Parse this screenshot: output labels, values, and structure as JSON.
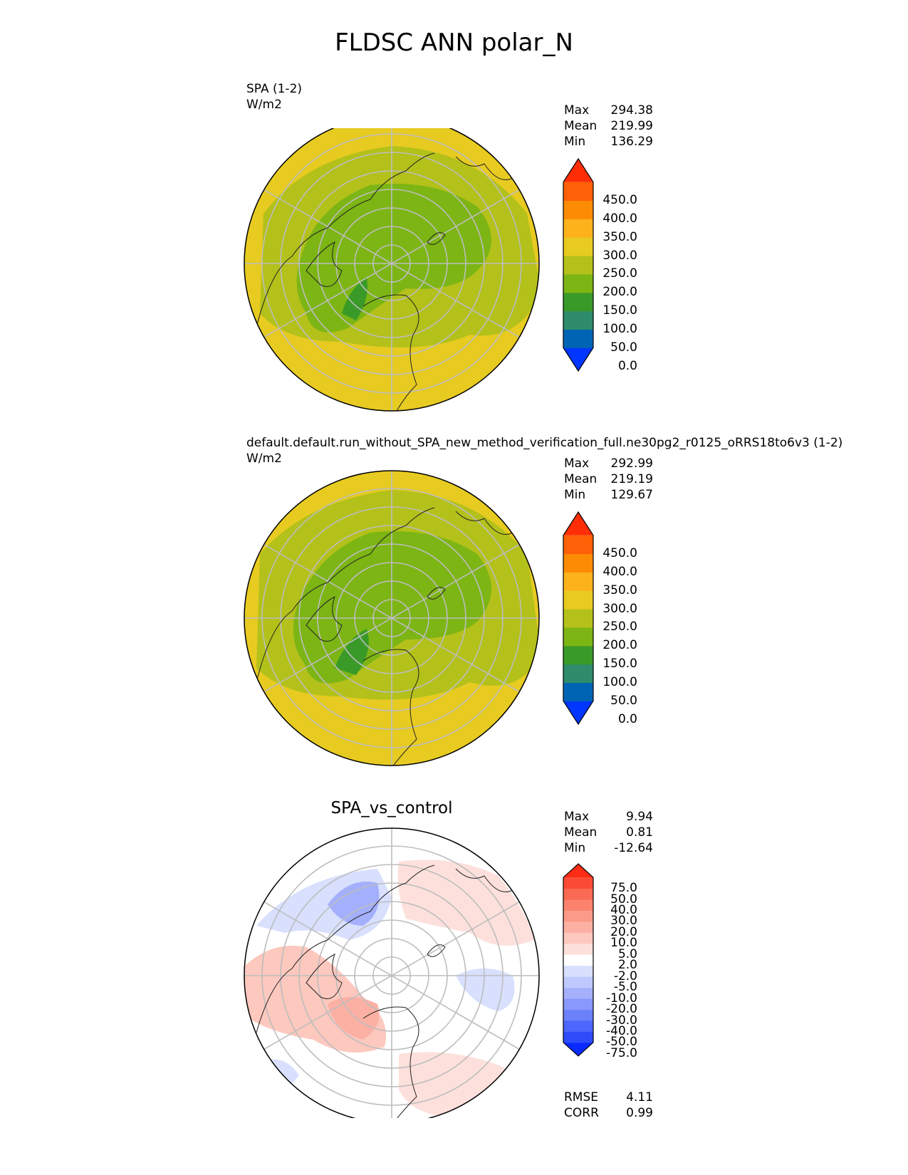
{
  "figure": {
    "title": "FLDSC ANN polar_N"
  },
  "panels": [
    {
      "name": "SPA (1-2)",
      "units": "W/m2",
      "stats": {
        "max_label": "Max",
        "max": "294.38",
        "mean_label": "Mean",
        "mean": "219.99",
        "min_label": "Min",
        "min": "136.29"
      },
      "colorbar": {
        "ticks": [
          "450.0",
          "400.0",
          "350.0",
          "300.0",
          "250.0",
          "200.0",
          "150.0",
          "100.0",
          "50.0",
          "0.0"
        ],
        "colors": [
          "#0036ff",
          "#0064b4",
          "#2e8c6c",
          "#3a9a28",
          "#7cb514",
          "#b3c11a",
          "#e7cb21",
          "#fcb21b",
          "#fd8b04",
          "#fd6006",
          "#ff2e07"
        ]
      }
    },
    {
      "name": "default.default.run_without_SPA_new_method_verification_full.ne30pg2_r0125_oRRS18to6v3 (1-2)",
      "units": "W/m2",
      "stats": {
        "max_label": "Max",
        "max": "292.99",
        "mean_label": "Mean",
        "mean": "219.19",
        "min_label": "Min",
        "min": "129.67"
      },
      "colorbar": {
        "ticks": [
          "450.0",
          "400.0",
          "350.0",
          "300.0",
          "250.0",
          "200.0",
          "150.0",
          "100.0",
          "50.0",
          "0.0"
        ],
        "colors": [
          "#0036ff",
          "#0064b4",
          "#2e8c6c",
          "#3a9a28",
          "#7cb514",
          "#b3c11a",
          "#e7cb21",
          "#fcb21b",
          "#fd8b04",
          "#fd6006",
          "#ff2e07"
        ]
      }
    },
    {
      "name": "SPA_vs_control",
      "stats": {
        "max_label": "Max",
        "max": "9.94",
        "mean_label": "Mean",
        "mean": "0.81",
        "min_label": "Min",
        "min": "-12.64"
      },
      "colorbar": {
        "ticks": [
          "75.0",
          "50.0",
          "40.0",
          "30.0",
          "20.0",
          "10.0",
          "5.0",
          "2.0",
          "-2.0",
          "-5.0",
          "-10.0",
          "-20.0",
          "-30.0",
          "-40.0",
          "-50.0",
          "-75.0"
        ],
        "colors": [
          "#0a2bff",
          "#2f4cfb",
          "#4d66fb",
          "#6b80fb",
          "#8898fb",
          "#a4b0fc",
          "#becafd",
          "#d8e0fe",
          "#ffffff",
          "#fde0dc",
          "#fdc8be",
          "#fcb0a4",
          "#fb9a88",
          "#fb836d",
          "#fb6a52",
          "#fc4b34",
          "#fd2c14"
        ]
      },
      "rmse_label": "RMSE",
      "rmse": "4.11",
      "corr_label": "CORR",
      "corr": "0.99"
    }
  ]
}
